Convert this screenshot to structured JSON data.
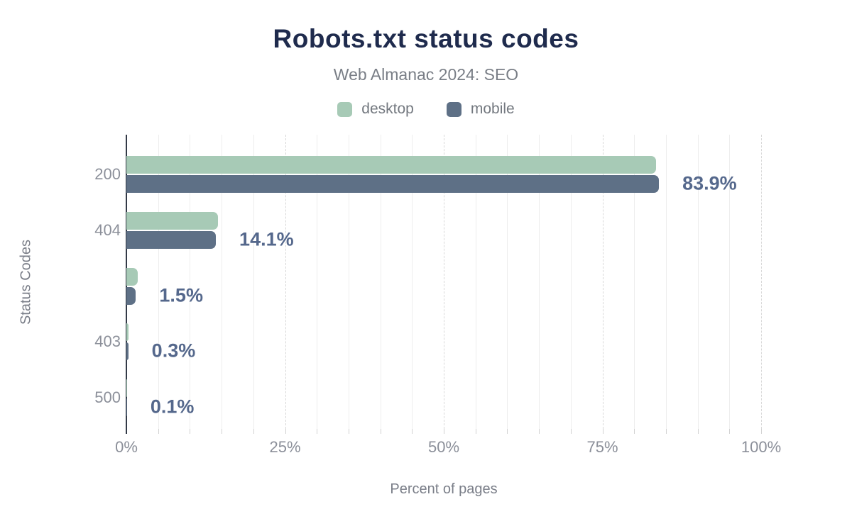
{
  "title": "Robots.txt status codes",
  "subtitle": "Web Almanac 2024: SEO",
  "legend": {
    "items": [
      {
        "label": "desktop",
        "color": "#a7cab6"
      },
      {
        "label": "mobile",
        "color": "#5e7086"
      }
    ]
  },
  "chart_data": {
    "type": "bar",
    "orientation": "horizontal",
    "title": "Robots.txt status codes",
    "subtitle": "Web Almanac 2024: SEO",
    "xlabel": "Percent of pages",
    "ylabel": "Status Codes",
    "xlim": [
      0,
      100
    ],
    "x_ticks": [
      {
        "value": 0,
        "label": "0%"
      },
      {
        "value": 25,
        "label": "25%"
      },
      {
        "value": 50,
        "label": "50%"
      },
      {
        "value": 75,
        "label": "75%"
      },
      {
        "value": 100,
        "label": "100%"
      }
    ],
    "grid": {
      "minor_step": 5,
      "major_step": 25,
      "shown": true
    },
    "legend_position": "top",
    "categories": [
      "200",
      "404",
      "",
      "403",
      "500"
    ],
    "series": [
      {
        "name": "desktop",
        "color": "#a7cab6",
        "values": [
          83.5,
          14.4,
          1.8,
          0.3,
          0.1
        ]
      },
      {
        "name": "mobile",
        "color": "#5e7086",
        "values": [
          83.9,
          14.1,
          1.5,
          0.3,
          0.1
        ]
      }
    ],
    "data_labels": [
      "83.9%",
      "14.1%",
      "1.5%",
      "0.3%",
      "0.1%"
    ],
    "data_label_color": "#55688c"
  }
}
